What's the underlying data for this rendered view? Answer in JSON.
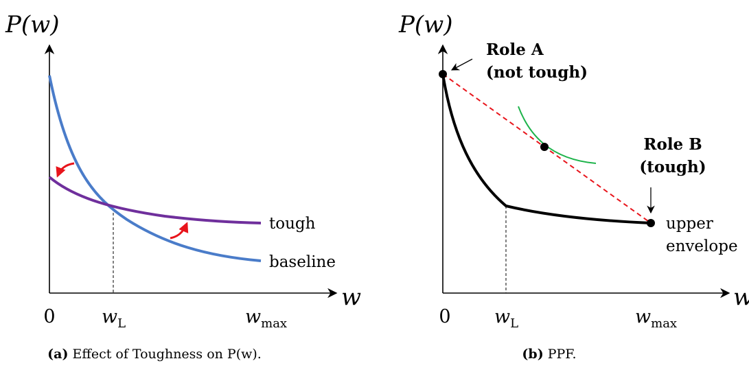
{
  "panel_a": {
    "y_label": "P(w)",
    "x_label": "w",
    "ticks": [
      {
        "main": "0"
      },
      {
        "main": "w",
        "sub": "L"
      },
      {
        "main": "w",
        "sub": "max"
      }
    ],
    "curves": [
      "tough",
      "baseline"
    ],
    "caption": {
      "tag": "(a)",
      "text": "Effect of Toughness on P(w)."
    }
  },
  "panel_b": {
    "y_label": "P(w)",
    "x_label": "w",
    "ticks": [
      {
        "main": "0"
      },
      {
        "main": "w",
        "sub": "L"
      },
      {
        "main": "w",
        "sub": "max"
      }
    ],
    "role_a": [
      "Role A",
      "(not tough)"
    ],
    "role_b": [
      "Role B",
      "(tough)"
    ],
    "envelope": [
      "upper",
      "envelope"
    ],
    "caption": {
      "tag": "(b)",
      "text": "PPF."
    }
  }
}
